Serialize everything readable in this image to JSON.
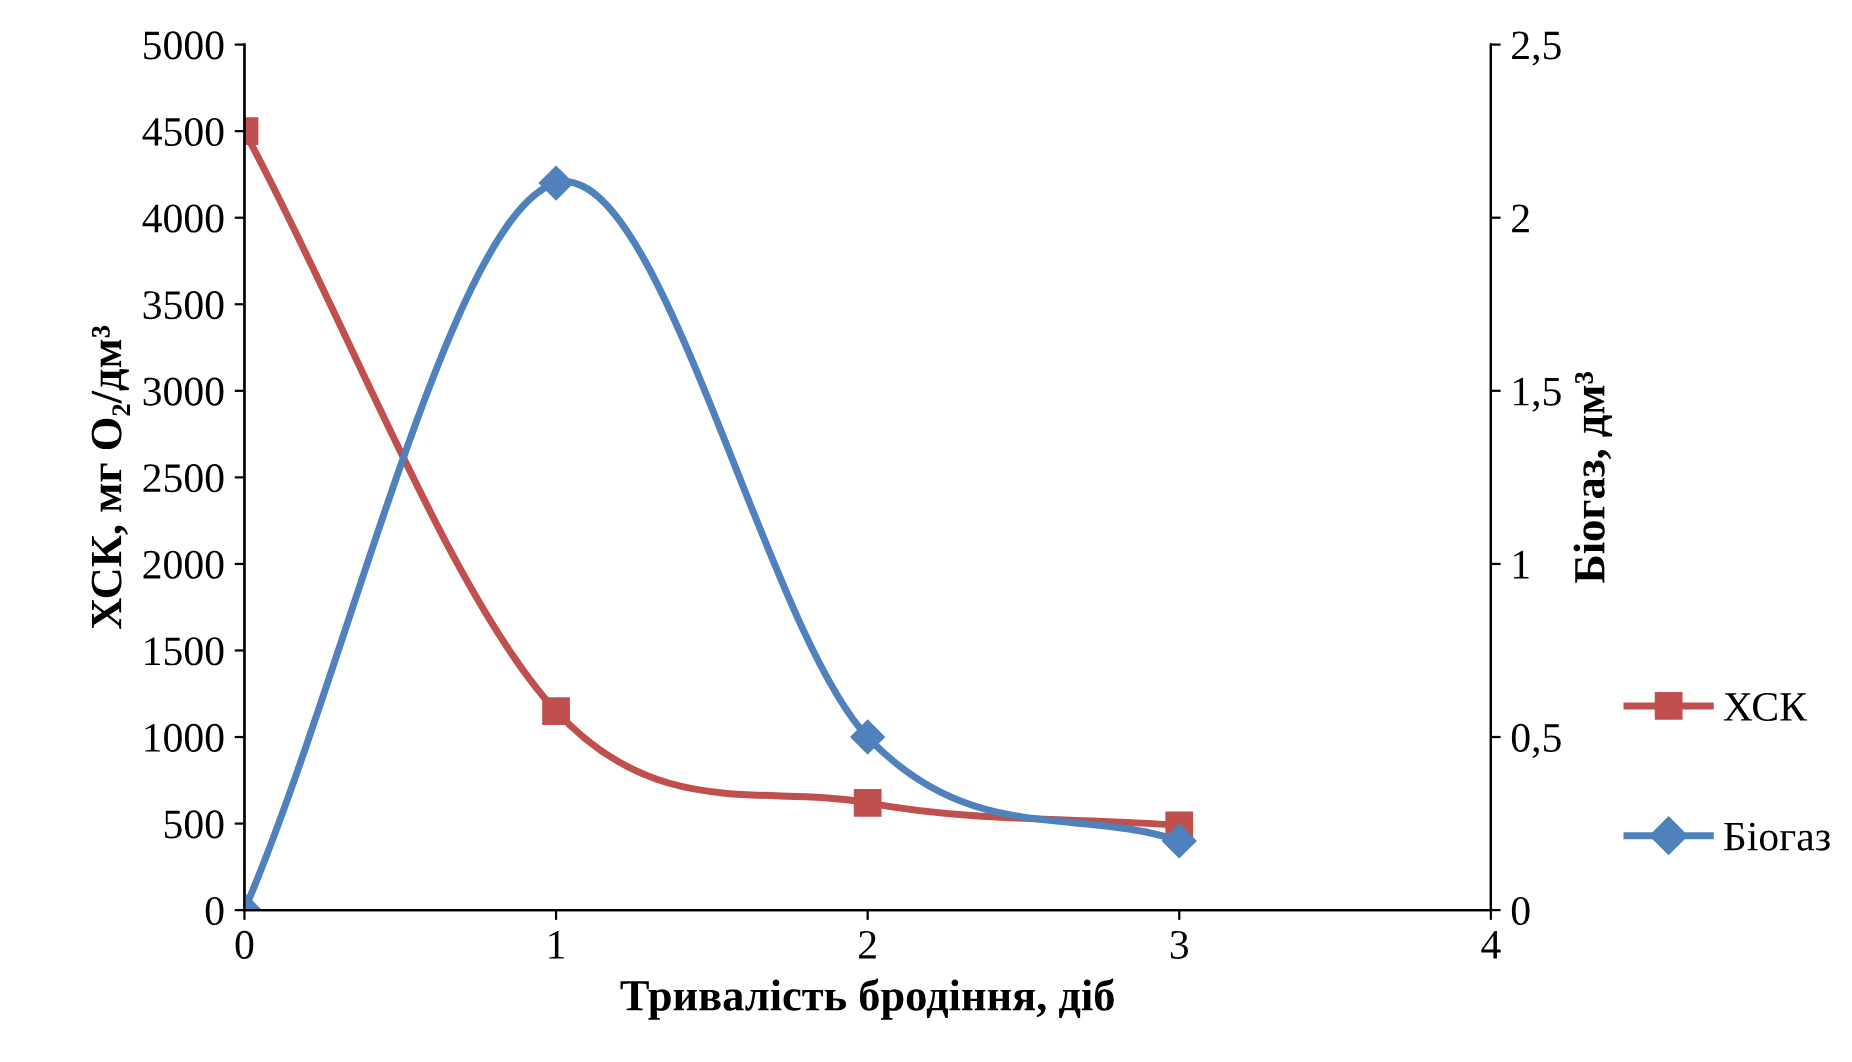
{
  "chart_data": {
    "type": "line",
    "xlabel": "Тривалість бродіння, діб",
    "ylabel": "ХСК, мг O₂/дм³",
    "y2label": "Біогаз, дм³",
    "x": [
      0,
      1,
      2,
      3
    ],
    "series": [
      {
        "name": "ХСК",
        "color": "#c0504d",
        "marker": "square",
        "values": [
          4500,
          1150,
          620,
          490
        ]
      },
      {
        "name": "Біогаз",
        "color": "#4f81bd",
        "marker": "diamond",
        "axis": "y2",
        "values": [
          0,
          2.1,
          0.5,
          0.2
        ]
      }
    ],
    "xlim": [
      0,
      4
    ],
    "xticks": [
      0,
      1,
      2,
      3,
      4
    ],
    "ylim": [
      0,
      5000
    ],
    "yticks": [
      0,
      500,
      1000,
      1500,
      2000,
      2500,
      3000,
      3500,
      4000,
      4500,
      5000
    ],
    "y2lim": [
      0,
      2.5
    ],
    "y2ticks": [
      0,
      {
        "value": 0.5,
        "label": "0,5"
      },
      1,
      {
        "value": 1.5,
        "label": "1,5"
      },
      2,
      {
        "value": 2.5,
        "label": "2,5"
      }
    ],
    "grid": false,
    "legend": "right",
    "line_style": "solid"
  }
}
